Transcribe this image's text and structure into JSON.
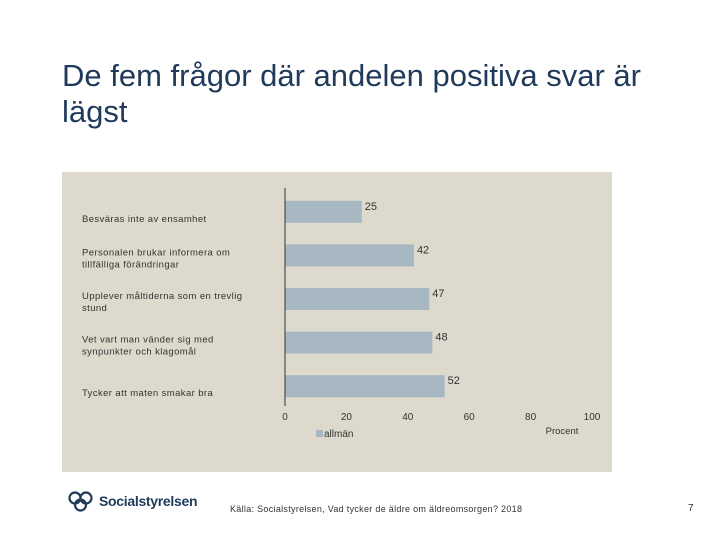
{
  "slide": {
    "title": "De fem frågor där andelen positiva svar är lägst",
    "logo_text": "Socialstyrelsen",
    "source": "Källa: Socialstyrelsen, Vad tycker de äldre om äldreomsorgen? 2018",
    "page_number": "7"
  },
  "colors": {
    "bar": "#a8b8c3",
    "panel": "#ddd9cc",
    "axis": "#333333",
    "text": "#333333",
    "title": "#1f3a5a"
  },
  "chart_data": {
    "type": "bar",
    "orientation": "horizontal",
    "categories": [
      [
        "Besväras inte av ensamhet"
      ],
      [
        "Personalen brukar informera om",
        "tillfälliga förändringar"
      ],
      [
        "Upplever måltiderna som en trevlig",
        "stund"
      ],
      [
        "Vet vart man vänder sig med",
        "synpunkter och klagomål"
      ],
      [
        "Tycker att maten smakar bra"
      ]
    ],
    "series": [
      {
        "name": "allmän",
        "values": [
          25,
          42,
          47,
          48,
          52
        ]
      }
    ],
    "xlim": [
      0,
      100
    ],
    "xticks": [
      "0",
      "20",
      "40",
      "60",
      "80",
      "100"
    ],
    "xlabel": "Procent",
    "legend_position": "bottom-left"
  }
}
